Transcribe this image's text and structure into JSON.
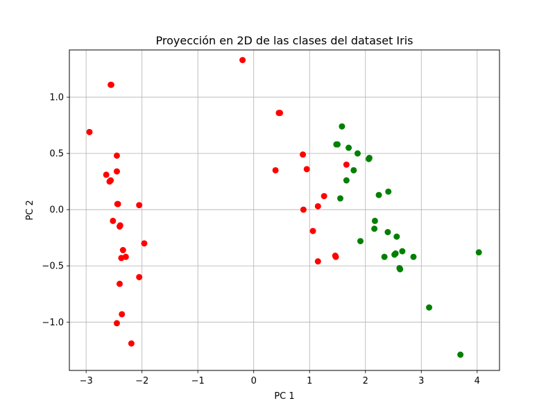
{
  "chart_data": {
    "type": "scatter",
    "title": "Proyección en 2D de las clases del dataset Iris",
    "xlabel": "PC 1",
    "ylabel": "PC 2",
    "xlim": [
      -3.3,
      4.4
    ],
    "ylim": [
      -1.43,
      1.42
    ],
    "xticks": [
      -3,
      -2,
      -1,
      0,
      1,
      2,
      3,
      4
    ],
    "xtick_labels": [
      "−3",
      "−2",
      "−1",
      "0",
      "1",
      "2",
      "3",
      "4"
    ],
    "yticks": [
      -1.0,
      -0.5,
      0.0,
      0.5,
      1.0
    ],
    "ytick_labels": [
      "−1.0",
      "−0.5",
      "0.0",
      "0.5",
      "1.0"
    ],
    "grid": true,
    "series": [
      {
        "color": "#ff0000",
        "points": [
          [
            -2.94,
            0.69
          ],
          [
            -2.56,
            1.11
          ],
          [
            -2.55,
            1.11
          ],
          [
            -2.45,
            0.48
          ],
          [
            -2.64,
            0.31
          ],
          [
            -2.45,
            0.34
          ],
          [
            -2.58,
            0.25
          ],
          [
            -2.56,
            0.26
          ],
          [
            -2.44,
            0.05
          ],
          [
            -2.43,
            0.05
          ],
          [
            -2.05,
            0.04
          ],
          [
            -2.52,
            -0.1
          ],
          [
            -2.4,
            -0.15
          ],
          [
            -2.39,
            -0.14
          ],
          [
            -2.34,
            -0.36
          ],
          [
            -1.96,
            -0.3
          ],
          [
            -2.37,
            -0.43
          ],
          [
            -2.29,
            -0.42
          ],
          [
            -2.4,
            -0.66
          ],
          [
            -2.05,
            -0.6
          ],
          [
            -2.36,
            -0.93
          ],
          [
            -2.45,
            -1.01
          ],
          [
            -2.19,
            -1.19
          ],
          [
            -0.2,
            1.33
          ],
          [
            0.45,
            0.86
          ],
          [
            0.47,
            0.86
          ],
          [
            0.39,
            0.35
          ],
          [
            0.88,
            0.49
          ],
          [
            0.95,
            0.36
          ],
          [
            1.66,
            0.4
          ],
          [
            1.26,
            0.12
          ],
          [
            1.15,
            0.03
          ],
          [
            0.89,
            -0.0
          ],
          [
            1.06,
            -0.19
          ],
          [
            1.15,
            -0.46
          ],
          [
            1.46,
            -0.41
          ],
          [
            1.47,
            -0.42
          ]
        ]
      },
      {
        "color": "#008000",
        "points": [
          [
            1.58,
            0.74
          ],
          [
            1.48,
            0.58
          ],
          [
            1.5,
            0.58
          ],
          [
            1.7,
            0.55
          ],
          [
            1.86,
            0.5
          ],
          [
            2.07,
            0.46
          ],
          [
            2.06,
            0.45
          ],
          [
            1.79,
            0.35
          ],
          [
            1.66,
            0.26
          ],
          [
            2.41,
            0.16
          ],
          [
            2.24,
            0.13
          ],
          [
            1.55,
            0.1
          ],
          [
            2.17,
            -0.1
          ],
          [
            2.16,
            -0.17
          ],
          [
            2.4,
            -0.2
          ],
          [
            2.56,
            -0.24
          ],
          [
            1.91,
            -0.28
          ],
          [
            2.66,
            -0.37
          ],
          [
            4.03,
            -0.38
          ],
          [
            2.52,
            -0.4
          ],
          [
            2.54,
            -0.39
          ],
          [
            2.34,
            -0.42
          ],
          [
            2.86,
            -0.42
          ],
          [
            2.61,
            -0.52
          ],
          [
            2.62,
            -0.53
          ],
          [
            3.14,
            -0.87
          ],
          [
            3.7,
            -1.29
          ]
        ]
      }
    ]
  }
}
